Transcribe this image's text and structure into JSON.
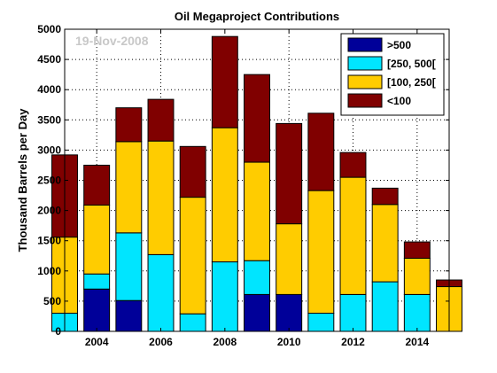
{
  "chart_data": {
    "type": "bar",
    "stacked": true,
    "title": "Oil Megaproject Contributions",
    "ylabel": "Thousand Barrels per Day",
    "xlabel": "",
    "watermark": "19-Nov-2008",
    "ylim": [
      0,
      5000
    ],
    "xlim": [
      2003,
      2015
    ],
    "y_ticks": [
      0,
      500,
      1000,
      1500,
      2000,
      2500,
      3000,
      3500,
      4000,
      4500,
      5000
    ],
    "x_ticks": [
      2004,
      2006,
      2008,
      2010,
      2012,
      2014
    ],
    "grid": true,
    "legend_position": "top-right",
    "categories": [
      2003,
      2004,
      2005,
      2006,
      2007,
      2008,
      2009,
      2010,
      2011,
      2012,
      2013,
      2014,
      2015
    ],
    "series": [
      {
        "name": ">500",
        "color": "#000099",
        "values": [
          0,
          700,
          510,
          0,
          0,
          0,
          610,
          610,
          0,
          0,
          0,
          0,
          0
        ]
      },
      {
        "name": "[250, 500[",
        "color": "#00e5ff",
        "values": [
          300,
          250,
          1120,
          1270,
          290,
          1150,
          560,
          0,
          300,
          610,
          820,
          610,
          0
        ]
      },
      {
        "name": "[100, 250[",
        "color": "#ffcc00",
        "values": [
          1260,
          1140,
          1510,
          1880,
          1930,
          2220,
          1630,
          1170,
          2030,
          1940,
          1280,
          600,
          740
        ]
      },
      {
        "name": "<100",
        "color": "#800000",
        "values": [
          1360,
          660,
          560,
          690,
          840,
          1510,
          1450,
          1660,
          1280,
          410,
          270,
          270,
          110
        ]
      }
    ]
  }
}
